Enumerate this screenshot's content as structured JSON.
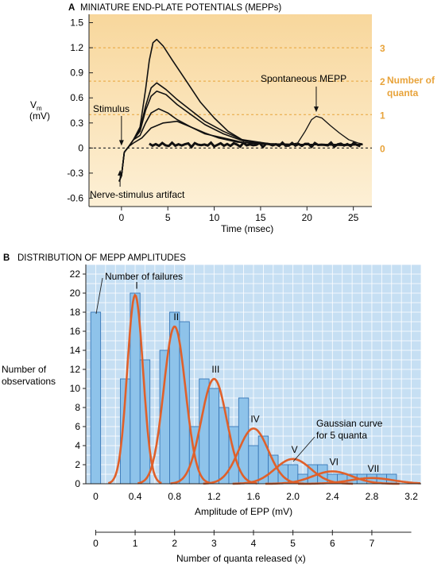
{
  "panelA": {
    "letter": "A",
    "title": "MINIATURE END-PLATE POTENTIALS (MEPPs)",
    "ylabel_main": "V",
    "ylabel_sub": "m",
    "ylabel_unit": "(mV)",
    "xlabel": "Time (msec)",
    "right_axis_title": "Number of quanta",
    "right_axis_title_lines": [
      "Number of",
      "quanta"
    ],
    "annotations": {
      "stimulus": "Stimulus",
      "artifact": "Nerve-stimulus artifact",
      "spontaneous": "Spontaneous MEPP"
    },
    "colors": {
      "bg_dark": "#f8d79c",
      "bg_light": "#fdf0d6",
      "accent": "#e8a33a",
      "trace": "#111111"
    }
  },
  "panelB": {
    "letter": "B",
    "title": "DISTRIBUTION OF MEPP AMPLITUDES",
    "ylabel_lines": [
      "Number of",
      "observations"
    ],
    "xlabel": "Amplitude of EPP (mV)",
    "quanta_axis_label": "Number of quanta released (x)",
    "annotations": {
      "failures": "Number of failures",
      "gaussian_lines": [
        "Gaussian curve",
        "for 5 quanta"
      ]
    },
    "colors": {
      "bg": "#c6dff3",
      "bar": "#8ec3ea",
      "bar_edge": "#3a78b8",
      "curve": "#e0602a",
      "grid": "#ffffff"
    }
  },
  "chart_data": [
    {
      "type": "line",
      "title": "MINIATURE END-PLATE POTENTIALS (MEPPs)",
      "xlabel": "Time (msec)",
      "ylabel": "Vm (mV)",
      "xlim": [
        -3.5,
        27
      ],
      "ylim": [
        -0.7,
        1.6
      ],
      "x_ticks": [
        0,
        5,
        10,
        15,
        20,
        25
      ],
      "y_ticks": [
        -0.6,
        -0.3,
        0,
        0.3,
        0.6,
        0.9,
        1.2,
        1.5
      ],
      "y_tick_labels": [
        "-0.6",
        "-0.3",
        "0",
        "0.3",
        "0.6",
        "0.9",
        "1.2",
        "1.5"
      ],
      "right_axis": {
        "label": "Number of quanta",
        "ticks": [
          {
            "label": "0",
            "y": 0
          },
          {
            "label": "1",
            "y": 0.4
          },
          {
            "label": "2",
            "y": 0.8
          },
          {
            "label": "3",
            "y": 1.2
          }
        ]
      },
      "series": [
        {
          "values": [
            [
              -0.25,
              -0.4
            ],
            [
              0,
              -0.33
            ],
            [
              0.3,
              -0.05
            ],
            [
              0.8,
              0.02
            ],
            [
              1.3,
              0.06
            ],
            [
              2.2,
              0.12
            ],
            [
              3.2,
              0.24
            ],
            [
              4.5,
              0.3
            ],
            [
              6,
              0.32
            ],
            [
              7.5,
              0.25
            ],
            [
              9,
              0.18
            ],
            [
              10.5,
              0.12
            ],
            [
              12.5,
              0.07
            ],
            [
              15,
              0.05
            ],
            [
              18,
              0.04
            ],
            [
              21,
              0.04
            ],
            [
              24,
              0.03
            ],
            [
              26,
              0.04
            ]
          ]
        },
        {
          "values": [
            [
              -0.25,
              -0.4
            ],
            [
              0,
              -0.33
            ],
            [
              0.3,
              -0.05
            ],
            [
              0.8,
              0.02
            ],
            [
              1.3,
              0.1
            ],
            [
              2,
              0.15
            ],
            [
              2.6,
              0.3
            ],
            [
              3.2,
              0.42
            ],
            [
              4,
              0.47
            ],
            [
              5,
              0.42
            ],
            [
              6,
              0.34
            ],
            [
              7.5,
              0.25
            ],
            [
              9,
              0.17
            ],
            [
              11,
              0.12
            ],
            [
              13,
              0.07
            ],
            [
              16,
              0.05
            ],
            [
              19,
              0.04
            ],
            [
              22,
              0.04
            ],
            [
              26,
              0.04
            ]
          ]
        },
        {
          "values": [
            [
              -0.25,
              -0.4
            ],
            [
              0,
              -0.33
            ],
            [
              0.3,
              -0.05
            ],
            [
              0.8,
              0.02
            ],
            [
              1.3,
              0.1
            ],
            [
              2,
              0.2
            ],
            [
              2.6,
              0.45
            ],
            [
              3.2,
              0.62
            ],
            [
              3.8,
              0.68
            ],
            [
              4.8,
              0.64
            ],
            [
              6,
              0.52
            ],
            [
              7.5,
              0.4
            ],
            [
              9,
              0.28
            ],
            [
              11,
              0.17
            ],
            [
              13,
              0.09
            ],
            [
              16,
              0.05
            ],
            [
              20,
              0.04
            ],
            [
              26,
              0.04
            ]
          ]
        },
        {
          "values": [
            [
              -0.25,
              -0.4
            ],
            [
              0,
              -0.33
            ],
            [
              0.3,
              -0.05
            ],
            [
              0.8,
              0.02
            ],
            [
              1.3,
              0.1
            ],
            [
              2,
              0.22
            ],
            [
              2.6,
              0.5
            ],
            [
              3.2,
              0.72
            ],
            [
              3.8,
              0.78
            ],
            [
              4.8,
              0.7
            ],
            [
              6,
              0.58
            ],
            [
              7.5,
              0.45
            ],
            [
              9,
              0.32
            ],
            [
              11,
              0.2
            ],
            [
              13,
              0.1
            ],
            [
              16,
              0.05
            ],
            [
              20,
              0.04
            ],
            [
              26,
              0.04
            ]
          ]
        },
        {
          "values": [
            [
              -0.25,
              -0.4
            ],
            [
              0,
              -0.33
            ],
            [
              0.3,
              -0.05
            ],
            [
              0.8,
              0.02
            ],
            [
              1.3,
              0.1
            ],
            [
              2,
              0.25
            ],
            [
              2.6,
              0.7
            ],
            [
              3,
              1.05
            ],
            [
              3.4,
              1.26
            ],
            [
              3.8,
              1.3
            ],
            [
              4.5,
              1.22
            ],
            [
              5.5,
              1.05
            ],
            [
              7,
              0.8
            ],
            [
              8.5,
              0.55
            ],
            [
              10,
              0.36
            ],
            [
              11.5,
              0.2
            ],
            [
              13,
              0.1
            ],
            [
              15,
              0.05
            ],
            [
              19,
              0.04
            ],
            [
              26,
              0.04
            ]
          ]
        },
        {
          "values": [
            [
              16,
              0.04
            ],
            [
              18,
              0.04
            ],
            [
              19,
              0.06
            ],
            [
              19.8,
              0.2
            ],
            [
              20.5,
              0.34
            ],
            [
              21,
              0.38
            ],
            [
              21.6,
              0.36
            ],
            [
              22.5,
              0.27
            ],
            [
              23.5,
              0.18
            ],
            [
              24.5,
              0.1
            ],
            [
              25.5,
              0.06
            ],
            [
              26,
              0.05
            ]
          ]
        }
      ],
      "grid": false
    },
    {
      "type": "bar",
      "title": "DISTRIBUTION OF MEPP AMPLITUDES",
      "xlabel": "Amplitude of EPP (mV)",
      "ylabel": "Number of observations",
      "xlim": [
        -0.1,
        3.3
      ],
      "ylim": [
        0,
        23
      ],
      "x_ticks": [
        0,
        0.4,
        0.8,
        1.2,
        1.6,
        2.0,
        2.4,
        2.8,
        3.2
      ],
      "x_tick_labels": [
        "0",
        "0.4",
        "0.8",
        "1.2",
        "1.6",
        "2.0",
        "2.4",
        "2.8",
        "3.2"
      ],
      "y_ticks": [
        0,
        2,
        4,
        6,
        8,
        10,
        12,
        14,
        16,
        18,
        20,
        22
      ],
      "bin_width": 0.1,
      "bars": [
        {
          "x": 0.0,
          "value": 18
        },
        {
          "x": 0.3,
          "value": 11
        },
        {
          "x": 0.4,
          "value": 20
        },
        {
          "x": 0.5,
          "value": 13
        },
        {
          "x": 0.7,
          "value": 14
        },
        {
          "x": 0.8,
          "value": 18
        },
        {
          "x": 0.9,
          "value": 17
        },
        {
          "x": 1.0,
          "value": 6
        },
        {
          "x": 1.1,
          "value": 11
        },
        {
          "x": 1.2,
          "value": 10
        },
        {
          "x": 1.3,
          "value": 8
        },
        {
          "x": 1.4,
          "value": 6
        },
        {
          "x": 1.5,
          "value": 9
        },
        {
          "x": 1.6,
          "value": 4
        },
        {
          "x": 1.7,
          "value": 5
        },
        {
          "x": 1.8,
          "value": 3
        },
        {
          "x": 1.9,
          "value": 2
        },
        {
          "x": 2.0,
          "value": 2
        },
        {
          "x": 2.1,
          "value": 1
        },
        {
          "x": 2.2,
          "value": 2
        },
        {
          "x": 2.3,
          "value": 2
        },
        {
          "x": 2.4,
          "value": 1
        },
        {
          "x": 2.5,
          "value": 1
        },
        {
          "x": 2.6,
          "value": 1
        },
        {
          "x": 2.7,
          "value": 1
        },
        {
          "x": 2.8,
          "value": 1
        },
        {
          "x": 2.9,
          "value": 1
        },
        {
          "x": 3.0,
          "value": 1
        }
      ],
      "gaussian_curves": [
        {
          "label": "I",
          "mean": 0.4,
          "sd": 0.08,
          "peak": 19.8
        },
        {
          "label": "II",
          "mean": 0.8,
          "sd": 0.11,
          "peak": 16.5
        },
        {
          "label": "III",
          "mean": 1.2,
          "sd": 0.13,
          "peak": 11
        },
        {
          "label": "IV",
          "mean": 1.6,
          "sd": 0.15,
          "peak": 5.8
        },
        {
          "label": "V",
          "mean": 2.0,
          "sd": 0.18,
          "peak": 2.6
        },
        {
          "label": "VI",
          "mean": 2.4,
          "sd": 0.2,
          "peak": 1.3
        },
        {
          "label": "VII",
          "mean": 2.8,
          "sd": 0.22,
          "peak": 0.6
        }
      ],
      "quanta_axis": {
        "label": "Number of quanta released (x)",
        "ticks": [
          0,
          1,
          2,
          3,
          4,
          5,
          6,
          7
        ],
        "mv_per_quantum": 0.4
      },
      "grid": true
    }
  ]
}
